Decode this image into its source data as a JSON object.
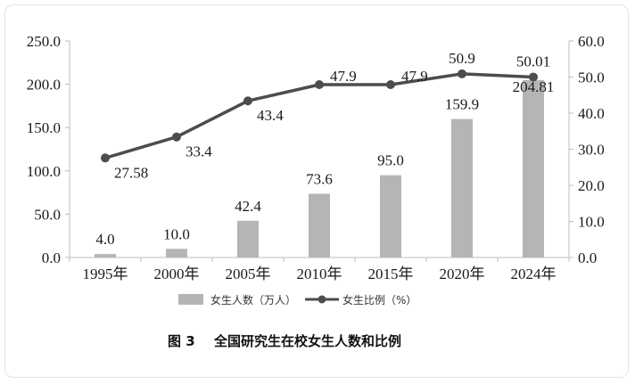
{
  "chart_data": {
    "type": "bar",
    "categories": [
      "1995年",
      "2000年",
      "2005年",
      "2010年",
      "2015年",
      "2020年",
      "2024年"
    ],
    "series": [
      {
        "name": "女生人数（万人）",
        "type": "bar",
        "axis": "left",
        "values": [
          4.0,
          10.0,
          42.4,
          73.6,
          95.0,
          159.9,
          204.81
        ],
        "labels": [
          "4.0",
          "10.0",
          "42.4",
          "73.6",
          "95.0",
          "159.9",
          "204.81"
        ],
        "color": "#b5b5b5"
      },
      {
        "name": "女生比例（%）",
        "type": "line",
        "axis": "right",
        "values": [
          27.58,
          33.4,
          43.4,
          47.9,
          47.9,
          50.9,
          50.01
        ],
        "labels": [
          "27.58",
          "33.4",
          "43.4",
          "47.9",
          "47.9",
          "50.9",
          "50.01"
        ],
        "color": "#4d4d4d"
      }
    ],
    "y_left": {
      "ylim": [
        0,
        250
      ],
      "ticks": [
        "0.0",
        "50.0",
        "100.0",
        "150.0",
        "200.0",
        "250.0"
      ]
    },
    "y_right": {
      "ylim": [
        0,
        60
      ],
      "ticks": [
        "0.0",
        "10.0",
        "20.0",
        "30.0",
        "40.0",
        "50.0",
        "60.0"
      ]
    },
    "grid": false,
    "legend_position": "bottom",
    "caption": {
      "prefix": "图 3",
      "text": "全国研究生在校女生人数和比例"
    }
  }
}
